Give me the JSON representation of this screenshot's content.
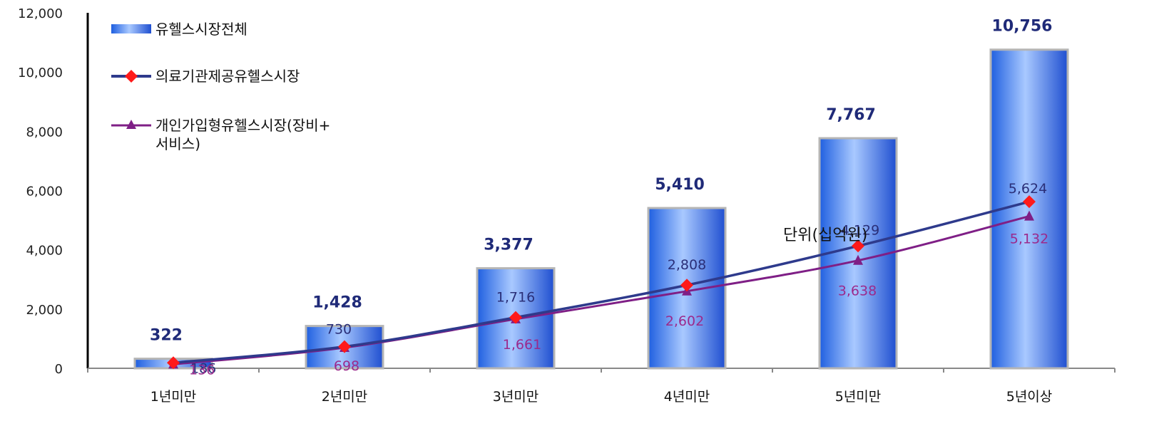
{
  "chart_data": {
    "type": "bar",
    "categories": [
      "1년미만",
      "2년미만",
      "3년미만",
      "4년미만",
      "5년미만",
      "5년이상"
    ],
    "ylim": [
      0,
      12000
    ],
    "yticks": [
      0,
      2000,
      4000,
      6000,
      8000,
      10000,
      12000
    ],
    "ytick_labels": [
      "0",
      "2,000",
      "4,000",
      "6,000",
      "8,000",
      "10,000",
      "12,000"
    ],
    "grid": false,
    "legend_position": "top-left",
    "unit_note": "단위(십억원)",
    "series": [
      {
        "name": "유헬스시장전체",
        "kind": "bar",
        "values": [
          322,
          1428,
          3377,
          5410,
          7767,
          10756
        ],
        "labels": [
          "322",
          "1,428",
          "3,377",
          "5,410",
          "7,767",
          "10,756"
        ],
        "color": "#3d7df0"
      },
      {
        "name": "의료기관제공유헬스시장",
        "kind": "line",
        "marker": "diamond",
        "values": [
          186,
          730,
          1716,
          2808,
          4129,
          5624
        ],
        "labels": [
          "186",
          "730",
          "1,716",
          "2,808",
          "4,129",
          "5,624"
        ],
        "color": "#2e3a8c",
        "marker_color": "#ff1a1a"
      },
      {
        "name": "개인가입형유헬스시장(장비+서비스)",
        "legend_lines": [
          "개인가입형유헬스시장(장비+",
          "서비스)"
        ],
        "kind": "line",
        "marker": "triangle",
        "values": [
          136,
          698,
          1661,
          2602,
          3638,
          5132
        ],
        "labels": [
          "136",
          "698",
          "1,661",
          "2,602",
          "3,638",
          "5,132"
        ],
        "color": "#7f1f86",
        "marker_color": "#7f1f86"
      }
    ]
  }
}
